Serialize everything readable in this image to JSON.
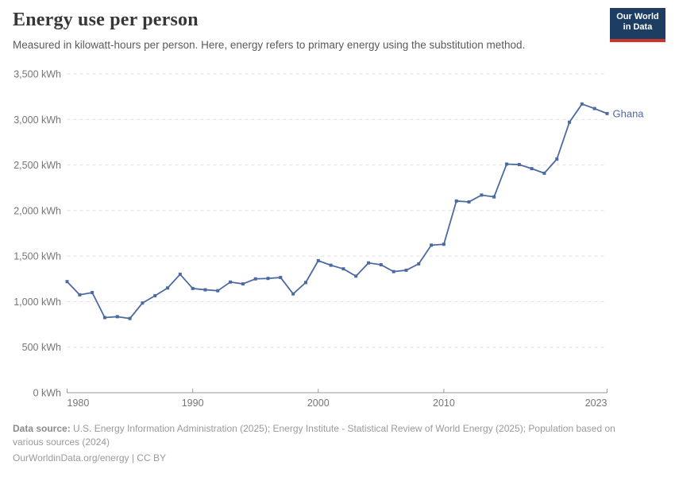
{
  "header": {
    "title": "Energy use per person",
    "subtitle": "Measured in kilowatt-hours per person. Here, energy refers to primary energy using the substitution method."
  },
  "logo": {
    "line1": "Our World",
    "line2": "in Data"
  },
  "chart_data": {
    "type": "line",
    "title": "Energy use per person",
    "unit": "kWh",
    "x_ticks": [
      1980,
      1990,
      2000,
      2010,
      2023
    ],
    "y_ticks": [
      {
        "value": 0,
        "label": "0 kWh"
      },
      {
        "value": 500,
        "label": "500 kWh"
      },
      {
        "value": 1000,
        "label": "1,000 kWh"
      },
      {
        "value": 1500,
        "label": "1,500 kWh"
      },
      {
        "value": 2000,
        "label": "2,000 kWh"
      },
      {
        "value": 2500,
        "label": "2,500 kWh"
      },
      {
        "value": 3000,
        "label": "3,000 kWh"
      },
      {
        "value": 3500,
        "label": "3,500 kWh"
      }
    ],
    "xlim": [
      1980,
      2023
    ],
    "ylim": [
      0,
      3500
    ],
    "grid": "horizontal-dashed",
    "legend": "end-of-line-label",
    "series": [
      {
        "name": "Ghana",
        "x": [
          1980,
          1981,
          1982,
          1983,
          1984,
          1985,
          1986,
          1987,
          1988,
          1989,
          1990,
          1991,
          1992,
          1993,
          1994,
          1995,
          1996,
          1997,
          1998,
          1999,
          2000,
          2001,
          2002,
          2003,
          2004,
          2005,
          2006,
          2007,
          2008,
          2009,
          2010,
          2011,
          2012,
          2013,
          2014,
          2015,
          2016,
          2017,
          2018,
          2019,
          2020,
          2021,
          2022,
          2023
        ],
        "values": [
          1220,
          1075,
          1100,
          825,
          835,
          815,
          985,
          1065,
          1150,
          1300,
          1145,
          1130,
          1120,
          1215,
          1195,
          1250,
          1255,
          1265,
          1085,
          1210,
          1450,
          1400,
          1360,
          1280,
          1425,
          1405,
          1330,
          1345,
          1415,
          1620,
          1630,
          2105,
          2095,
          2170,
          2150,
          2510,
          2505,
          2460,
          2410,
          2565,
          2970,
          3170,
          3120,
          3065
        ]
      }
    ]
  },
  "footer": {
    "source_label": "Data source:",
    "source_text": " U.S. Energy Information Administration (2025); Energy Institute - Statistical Review of World Energy (2025); Population based on various sources (2024)",
    "license": "OurWorldinData.org/energy | CC BY"
  },
  "colors": {
    "line": "#4d6aa0",
    "series_label": "#4d6aa0",
    "grid": "#dddddd",
    "axis": "#999999",
    "tick_label": "#757575",
    "logo_bg": "#1d3d63",
    "logo_stripe": "#c9342b"
  }
}
